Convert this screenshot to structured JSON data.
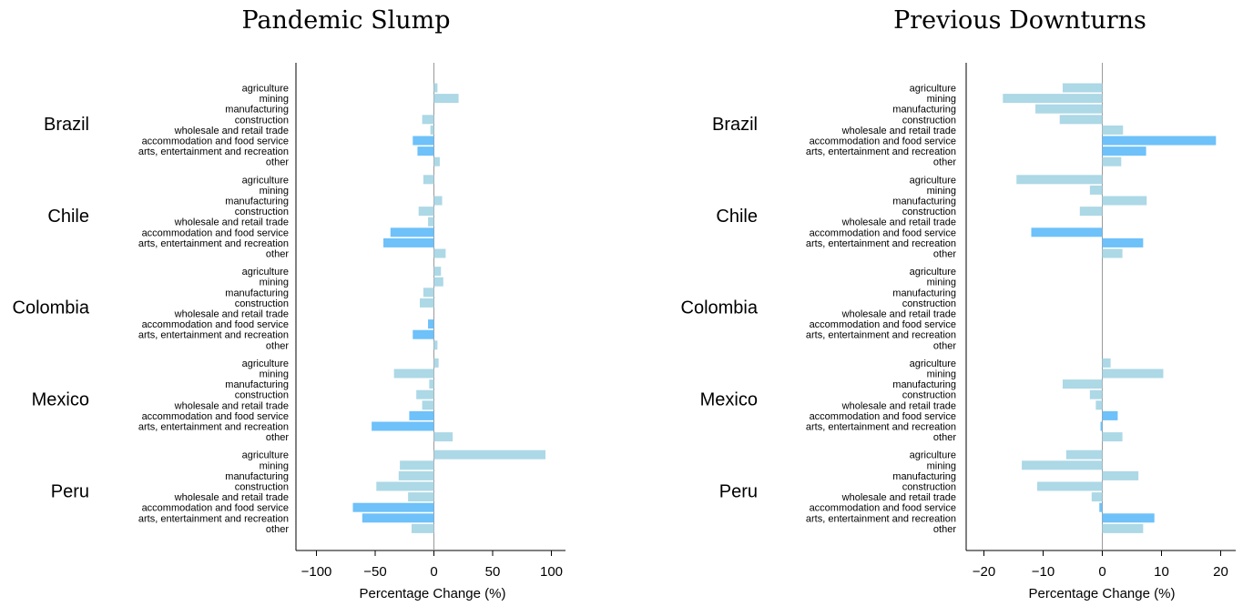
{
  "colors": {
    "normal_bar": "#add8e6",
    "highlight_bar": "#6ec1f9",
    "axis": "#000000",
    "zero_line": "#999999"
  },
  "chart_data": [
    {
      "type": "bar",
      "orientation": "horizontal",
      "title": "Pandemic Slump",
      "xlabel": "Percentage Change (%)",
      "xlim": [
        -115,
        113
      ],
      "xticks": [
        -100,
        -50,
        0,
        50,
        100
      ],
      "xtick_labels": [
        "−100",
        "−50",
        "0",
        "50",
        "100"
      ],
      "groups": [
        "Brazil",
        "Chile",
        "Colombia",
        "Mexico",
        "Peru"
      ],
      "categories": [
        "agriculture",
        "mining",
        "manufacturing",
        "construction",
        "wholesale and retail trade",
        "accommodation and food service",
        "arts, entertainment and recreation",
        "other"
      ],
      "highlighted_categories": [
        "accommodation and food service",
        "arts, entertainment and recreation"
      ],
      "series": [
        {
          "group": "Brazil",
          "values": [
            3,
            21,
            0,
            -10,
            -3,
            -18,
            -14,
            5
          ]
        },
        {
          "group": "Chile",
          "values": [
            -9,
            0,
            7,
            -13,
            -5,
            -37,
            -43,
            10
          ]
        },
        {
          "group": "Colombia",
          "values": [
            6,
            8,
            -9,
            -12,
            0,
            -5,
            -18,
            3
          ]
        },
        {
          "group": "Mexico",
          "values": [
            4,
            -34,
            -4,
            -15,
            -10,
            -21,
            -53,
            16
          ]
        },
        {
          "group": "Peru",
          "values": [
            95,
            -29,
            -30,
            -49,
            -22,
            -69,
            -61,
            -19
          ]
        }
      ]
    },
    {
      "type": "bar",
      "orientation": "horizontal",
      "title": "Previous Downturns",
      "xlabel": "Percentage Change (%)",
      "xlim": [
        -23.5,
        22.5
      ],
      "xticks": [
        -20,
        -10,
        0,
        10,
        20
      ],
      "xtick_labels": [
        "−20",
        "−10",
        "0",
        "10",
        "20"
      ],
      "groups": [
        "Brazil",
        "Chile",
        "Colombia",
        "Mexico",
        "Peru"
      ],
      "categories": [
        "agriculture",
        "mining",
        "manufacturing",
        "construction",
        "wholesale and retail trade",
        "accommodation and food service",
        "arts, entertainment and recreation",
        "other"
      ],
      "highlighted_categories": [
        "accommodation and food service",
        "arts, entertainment and recreation"
      ],
      "series": [
        {
          "group": "Brazil",
          "values": [
            -6.7,
            -16.8,
            -11.3,
            -7.2,
            3.5,
            19.2,
            7.4,
            3.2
          ]
        },
        {
          "group": "Chile",
          "values": [
            -14.5,
            -2.1,
            7.5,
            -3.8,
            0,
            -12,
            6.9,
            3.4
          ]
        },
        {
          "group": "Colombia",
          "values": [
            0,
            0,
            0,
            0,
            0,
            0,
            0,
            0
          ]
        },
        {
          "group": "Mexico",
          "values": [
            1.4,
            10.3,
            -6.7,
            -2.1,
            -1.1,
            2.6,
            -0.3,
            3.4
          ]
        },
        {
          "group": "Peru",
          "values": [
            -6.1,
            -13.6,
            6.1,
            -11,
            -1.8,
            -0.5,
            8.8,
            6.9
          ]
        }
      ]
    }
  ]
}
